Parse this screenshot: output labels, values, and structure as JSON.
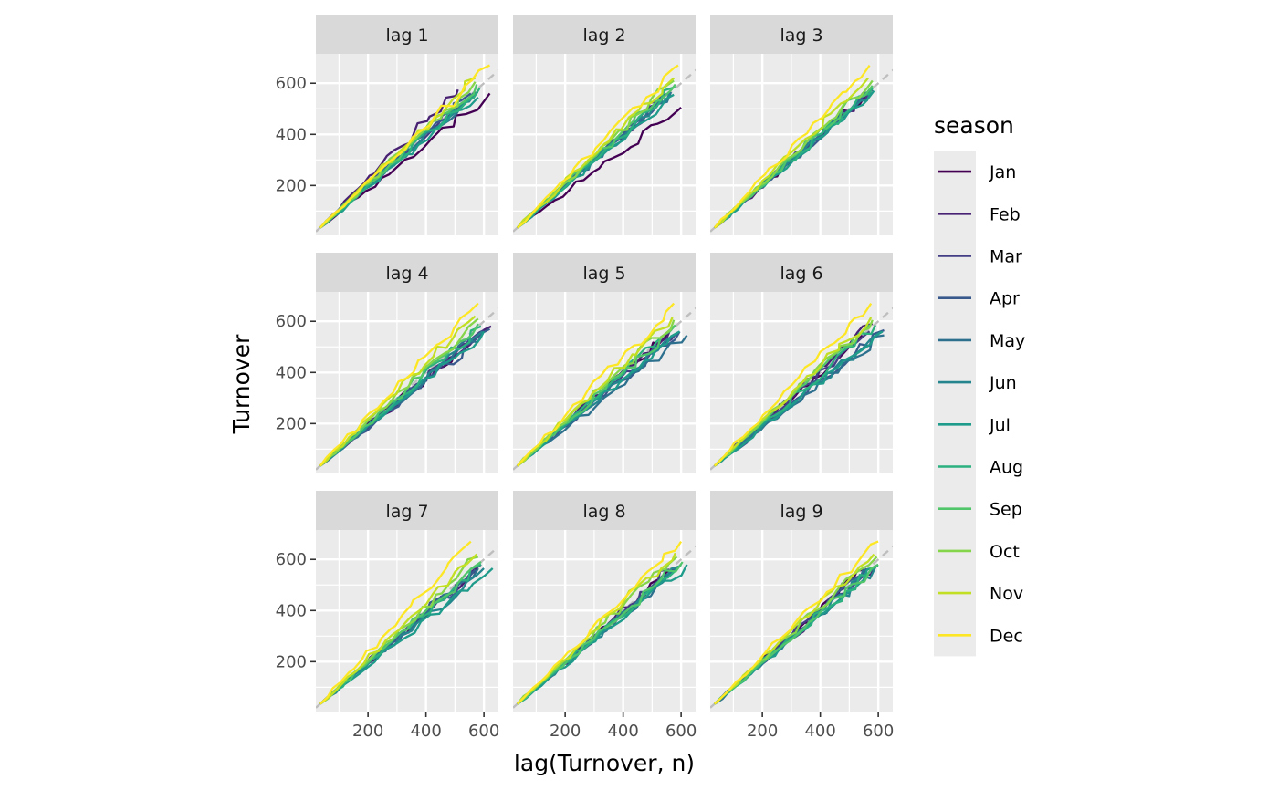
{
  "chart_data": {
    "type": "line",
    "facets": [
      "lag 1",
      "lag 2",
      "lag 3",
      "lag 4",
      "lag 5",
      "lag 6",
      "lag 7",
      "lag 8",
      "lag 9"
    ],
    "xlabel": "lag(Turnover, n)",
    "ylabel": "Turnover",
    "xlim": [
      20,
      650
    ],
    "ylim": [
      5,
      715
    ],
    "xticks": [
      200,
      400,
      600
    ],
    "yticks": [
      200,
      400,
      600
    ],
    "reference_line": "y = x (dashed grey)",
    "grid": true,
    "legend": {
      "title": "season",
      "position": "right",
      "entries": [
        "Jan",
        "Feb",
        "Mar",
        "Apr",
        "May",
        "Jun",
        "Jul",
        "Aug",
        "Sep",
        "Oct",
        "Nov",
        "Dec"
      ]
    },
    "series": [
      {
        "name": "Jan",
        "color": "#440154",
        "end_x": [
          620,
          600,
          555,
          580,
          555,
          545,
          575,
          560,
          555
        ],
        "end_y": [
          560,
          505,
          550,
          545,
          550,
          545,
          560,
          560,
          560
        ]
      },
      {
        "name": "Feb",
        "color": "#482173",
        "end_x": [
          510,
          540,
          580,
          625,
          560,
          580,
          590,
          575,
          590
        ],
        "end_y": [
          575,
          550,
          575,
          580,
          560,
          590,
          580,
          565,
          575
        ]
      },
      {
        "name": "Mar",
        "color": "#433E85",
        "end_x": [
          560,
          545,
          565,
          600,
          585,
          570,
          560,
          560,
          555
        ],
        "end_y": [
          555,
          550,
          560,
          565,
          555,
          560,
          555,
          560,
          560
        ]
      },
      {
        "name": "Apr",
        "color": "#38598C",
        "end_x": [
          555,
          560,
          560,
          620,
          595,
          620,
          570,
          580,
          560
        ],
        "end_y": [
          560,
          560,
          560,
          570,
          560,
          565,
          560,
          565,
          565
        ]
      },
      {
        "name": "May",
        "color": "#2D708E",
        "end_x": [
          580,
          565,
          570,
          600,
          620,
          620,
          580,
          590,
          580
        ],
        "end_y": [
          565,
          565,
          565,
          560,
          545,
          545,
          565,
          570,
          565
        ]
      },
      {
        "name": "Jun",
        "color": "#25858E",
        "end_x": [
          570,
          560,
          575,
          595,
          590,
          610,
          600,
          600,
          590
        ],
        "end_y": [
          560,
          560,
          565,
          560,
          555,
          560,
          565,
          575,
          570
        ]
      },
      {
        "name": "Jul",
        "color": "#1E9B8A",
        "end_x": [
          580,
          575,
          585,
          600,
          595,
          615,
          630,
          620,
          600
        ],
        "end_y": [
          545,
          555,
          570,
          560,
          560,
          560,
          565,
          580,
          575
        ]
      },
      {
        "name": "Aug",
        "color": "#2BB07F",
        "end_x": [
          585,
          580,
          580,
          590,
          575,
          590,
          590,
          600,
          590
        ],
        "end_y": [
          580,
          585,
          580,
          580,
          580,
          585,
          580,
          580,
          575
        ]
      },
      {
        "name": "Sep",
        "color": "#51C56A",
        "end_x": [
          575,
          580,
          580,
          580,
          580,
          570,
          590,
          605,
          600
        ],
        "end_y": [
          595,
          595,
          590,
          590,
          585,
          585,
          590,
          590,
          580
        ]
      },
      {
        "name": "Oct",
        "color": "#85D54A",
        "end_x": [
          570,
          575,
          580,
          580,
          575,
          580,
          580,
          585,
          595
        ],
        "end_y": [
          605,
          610,
          610,
          610,
          605,
          605,
          610,
          610,
          610
        ]
      },
      {
        "name": "Nov",
        "color": "#C2DF23",
        "end_x": [
          570,
          575,
          565,
          570,
          570,
          575,
          575,
          580,
          585
        ],
        "end_y": [
          620,
          620,
          620,
          620,
          615,
          615,
          620,
          625,
          620
        ]
      },
      {
        "name": "Dec",
        "color": "#FDE725",
        "end_x": [
          620,
          590,
          570,
          580,
          575,
          575,
          555,
          600,
          600
        ],
        "end_y": [
          670,
          670,
          670,
          670,
          670,
          670,
          670,
          670,
          670
        ]
      }
    ]
  }
}
